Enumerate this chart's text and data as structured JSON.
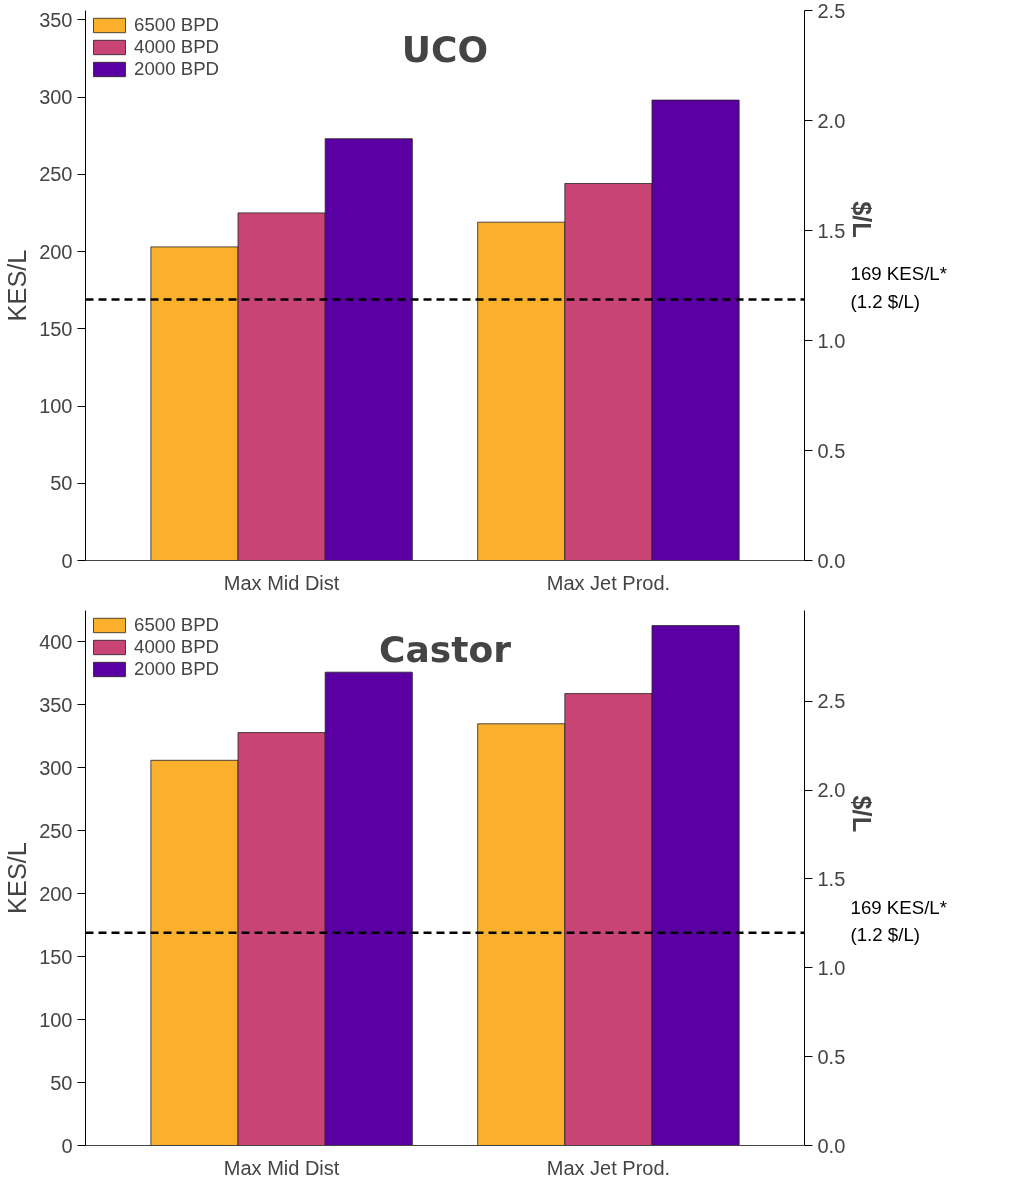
{
  "chart_data": [
    {
      "type": "bar",
      "title": "UCO",
      "categories": [
        "Max Mid Dist",
        "Max Jet Prod."
      ],
      "ylabel": "KES/L",
      "y2label": "$/L",
      "series": [
        {
          "name": "6500 BPD",
          "color": "#fbb02d",
          "values": [
            203,
            219
          ]
        },
        {
          "name": "4000 BPD",
          "color": "#c84474",
          "values": [
            225,
            244
          ]
        },
        {
          "name": "2000 BPD",
          "color": "#5a00a3",
          "values": [
            273,
            298
          ]
        }
      ],
      "ylim": [
        0,
        356
      ],
      "yticks": [
        0,
        50,
        100,
        150,
        200,
        250,
        300,
        350
      ],
      "y2lim": [
        0,
        2.5
      ],
      "y2ticks": [
        {
          "value": 0,
          "label": "0.0"
        },
        0.5,
        {
          "value": 1,
          "label": "1.0"
        },
        1.5,
        {
          "value": 2,
          "label": "2.0"
        },
        2.5
      ],
      "ref_lines": [
        {
          "axis": "y",
          "value": 169,
          "label": "169 KES/L*\n(1.2 $/L)",
          "color": "#000000",
          "line_style": "dashed"
        }
      ],
      "legend": "top left",
      "grid": false
    },
    {
      "type": "bar",
      "title": "Castor",
      "categories": [
        "Max Mid Dist",
        "Max Jet Prod."
      ],
      "ylabel": "KES/L",
      "y2label": "$/L",
      "series": [
        {
          "name": "6500 BPD",
          "color": "#fbb02d",
          "values": [
            306,
            335
          ]
        },
        {
          "name": "4000 BPD",
          "color": "#c84474",
          "values": [
            328,
            359
          ]
        },
        {
          "name": "2000 BPD",
          "color": "#5a00a3",
          "values": [
            376,
            413
          ]
        }
      ],
      "ylim": [
        0,
        425
      ],
      "yticks": [
        0,
        50,
        100,
        150,
        200,
        250,
        300,
        350,
        400
      ],
      "y2lim": [
        0,
        3.01
      ],
      "y2ticks": [
        {
          "value": 0,
          "label": "0.0"
        },
        0.5,
        {
          "value": 1,
          "label": "1.0"
        },
        1.5,
        {
          "value": 2,
          "label": "2.0"
        },
        2.5
      ],
      "ref_lines": [
        {
          "axis": "y",
          "value": 169,
          "label": "169 KES/L*\n(1.2 $/L)",
          "color": "#000000",
          "line_style": "dashed"
        }
      ],
      "legend": "top left",
      "grid": false
    }
  ]
}
